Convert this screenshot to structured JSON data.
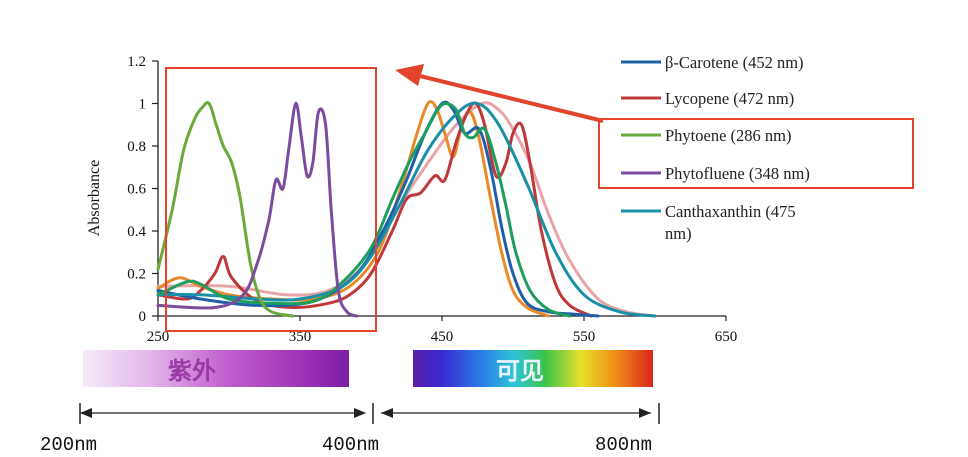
{
  "colors": {
    "highlight_box": "#e2452c",
    "arrow": "#e2452c",
    "axis": "#222222"
  },
  "chart_data": {
    "type": "line",
    "title": "",
    "xlabel": "",
    "ylabel": "Absorbance",
    "xlim": [
      250,
      650
    ],
    "ylim": [
      0,
      1.2
    ],
    "x_ticks": [
      "250",
      "350",
      "450",
      "550",
      "650"
    ],
    "y_ticks": [
      "0",
      "0.2",
      "0.4",
      "0.6",
      "0.8",
      "1",
      "1.2"
    ],
    "grid": false,
    "legend_position": "right",
    "series": [
      {
        "name": "β-Carotene (452 nm)",
        "color": "#1f5fa8",
        "x": [
          250,
          280,
          320,
          360,
          390,
          410,
          425,
          438,
          450,
          458,
          466,
          476,
          484,
          492,
          500,
          510,
          525,
          540,
          560
        ],
        "y": [
          0.12,
          0.08,
          0.05,
          0.07,
          0.2,
          0.42,
          0.64,
          0.86,
          1.0,
          0.97,
          0.86,
          0.88,
          0.7,
          0.42,
          0.2,
          0.06,
          0.02,
          0.01,
          0.0
        ]
      },
      {
        "name": "Lycopene (472 nm)",
        "color": "#c0393a",
        "x": [
          250,
          270,
          280,
          290,
          296,
          302,
          320,
          345,
          370,
          385,
          400,
          415,
          425,
          435,
          445,
          452,
          460,
          468,
          474,
          480,
          488,
          495,
          500,
          506,
          512,
          520,
          530,
          540,
          555
        ],
        "y": [
          0.1,
          0.08,
          0.12,
          0.2,
          0.28,
          0.18,
          0.07,
          0.04,
          0.06,
          0.1,
          0.2,
          0.4,
          0.55,
          0.58,
          0.66,
          0.64,
          0.82,
          0.96,
          1.0,
          0.9,
          0.66,
          0.72,
          0.86,
          0.9,
          0.72,
          0.4,
          0.15,
          0.05,
          0.0
        ]
      },
      {
        "name": "Phytoene (286 nm)",
        "color": "#6aaa3c",
        "x": [
          250,
          260,
          268,
          276,
          281,
          286,
          291,
          296,
          302,
          308,
          315,
          322,
          330,
          345
        ],
        "y": [
          0.22,
          0.5,
          0.78,
          0.93,
          0.98,
          1.0,
          0.9,
          0.8,
          0.72,
          0.55,
          0.25,
          0.08,
          0.02,
          0.0
        ]
      },
      {
        "name": "Phytofluene (348 nm)",
        "color": "#7b4b9e",
        "x": [
          250,
          290,
          310,
          320,
          328,
          333,
          338,
          342,
          347,
          351,
          355,
          359,
          363,
          368,
          372,
          377,
          383,
          390
        ],
        "y": [
          0.05,
          0.04,
          0.1,
          0.25,
          0.45,
          0.64,
          0.6,
          0.78,
          1.0,
          0.84,
          0.66,
          0.72,
          0.96,
          0.9,
          0.5,
          0.12,
          0.02,
          0.0
        ]
      },
      {
        "name": "Canthaxanthin (475 nm)",
        "color": "#1a8fa8",
        "x": [
          250,
          280,
          320,
          350,
          380,
          400,
          420,
          440,
          460,
          475,
          490,
          510,
          530,
          550,
          575,
          600
        ],
        "y": [
          0.1,
          0.1,
          0.08,
          0.08,
          0.14,
          0.28,
          0.52,
          0.78,
          0.95,
          1.0,
          0.9,
          0.62,
          0.3,
          0.1,
          0.02,
          0.0
        ]
      },
      {
        "color": "#e88a2a",
        "x": [
          250,
          265,
          280,
          300,
          330,
          360,
          385,
          405,
          420,
          432,
          440,
          446,
          452,
          458,
          464,
          470,
          476,
          484,
          492,
          500,
          510,
          525
        ],
        "y": [
          0.13,
          0.18,
          0.14,
          0.1,
          0.08,
          0.08,
          0.14,
          0.3,
          0.58,
          0.85,
          1.0,
          0.98,
          0.86,
          0.75,
          0.9,
          0.96,
          0.84,
          0.56,
          0.3,
          0.12,
          0.04,
          0.0
        ]
      },
      {
        "color": "#1e9e5e",
        "x": [
          250,
          270,
          280,
          300,
          330,
          360,
          380,
          400,
          415,
          428,
          438,
          446,
          452,
          460,
          466,
          472,
          480,
          488,
          495,
          502,
          512,
          525,
          540
        ],
        "y": [
          0.1,
          0.16,
          0.15,
          0.08,
          0.06,
          0.07,
          0.16,
          0.32,
          0.55,
          0.74,
          0.86,
          0.96,
          1.0,
          0.97,
          0.86,
          0.84,
          0.88,
          0.72,
          0.52,
          0.3,
          0.12,
          0.03,
          0.0
        ]
      },
      {
        "color": "#e8a4a8",
        "x": [
          250,
          300,
          340,
          370,
          395,
          420,
          440,
          460,
          478,
          490,
          500,
          512,
          525,
          540,
          560,
          580,
          600
        ],
        "y": [
          0.14,
          0.14,
          0.1,
          0.12,
          0.24,
          0.52,
          0.72,
          0.9,
          1.0,
          0.97,
          0.88,
          0.72,
          0.48,
          0.26,
          0.08,
          0.02,
          0.0
        ]
      }
    ]
  },
  "legend": [
    {
      "label": "β-Carotene (452 nm)",
      "color": "#1f5fa8"
    },
    {
      "label": "Lycopene (472 nm)",
      "color": "#c0393a"
    },
    {
      "label": "Phytoene (286 nm)",
      "color": "#6aaa3c"
    },
    {
      "label": "Phytofluene (348 nm)",
      "color": "#7b4b9e"
    },
    {
      "label_line1": "Canthaxanthin (475",
      "label_line2": "nm)",
      "color": "#1a8fa8"
    }
  ],
  "spectrum": {
    "uv_label": "紫外",
    "visible_label": "可见",
    "scale_left": "200nm",
    "scale_mid": "400nm",
    "scale_right": "800nm"
  }
}
